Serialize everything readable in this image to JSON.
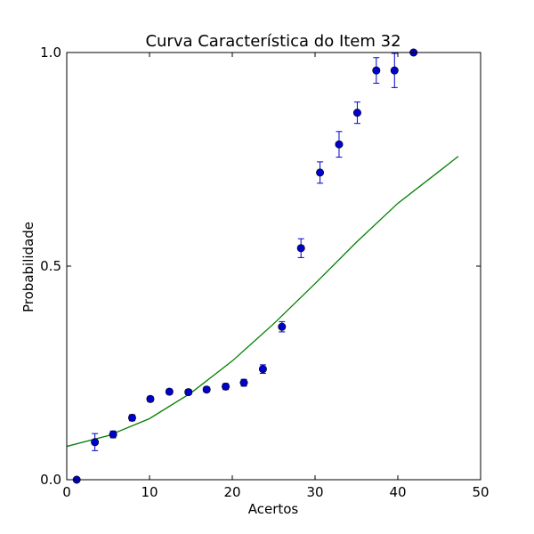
{
  "chart_data": {
    "type": "scatter",
    "title": "Curva Característica do Item 32",
    "xlabel": "Acertos",
    "ylabel": "Probabilidade",
    "xlim": [
      0,
      50
    ],
    "ylim": [
      0.0,
      1.0
    ],
    "xticks": [
      0,
      10,
      20,
      30,
      40,
      50
    ],
    "xtick_labels": [
      "0",
      "10",
      "20",
      "30",
      "40",
      "50"
    ],
    "yticks": [
      0.0,
      0.5,
      1.0
    ],
    "ytick_labels": [
      "0.0",
      "0.5",
      "1.0"
    ],
    "grid": false,
    "series": [
      {
        "kind": "points_with_errorbars",
        "color": "#0000cc",
        "x": [
          1.2,
          3.4,
          5.6,
          7.9,
          10.1,
          12.4,
          14.7,
          16.9,
          19.2,
          21.4,
          23.7,
          26.0,
          28.3,
          30.6,
          32.9,
          35.1,
          37.4,
          39.6,
          41.9
        ],
        "y": [
          0.0,
          0.088,
          0.106,
          0.145,
          0.189,
          0.206,
          0.205,
          0.211,
          0.218,
          0.227,
          0.259,
          0.358,
          0.542,
          0.719,
          0.785,
          0.859,
          0.958,
          0.958,
          1.0
        ],
        "yerr": [
          0.0,
          0.02,
          0.008,
          0.007,
          0.006,
          0.006,
          0.006,
          0.006,
          0.007,
          0.008,
          0.01,
          0.012,
          0.022,
          0.025,
          0.03,
          0.025,
          0.03,
          0.04,
          0.0
        ]
      },
      {
        "kind": "line",
        "color": "#008000",
        "x": [
          0,
          5,
          10,
          15,
          20,
          25,
          30,
          35,
          40,
          45,
          47.3
        ],
        "y": [
          0.078,
          0.103,
          0.143,
          0.203,
          0.278,
          0.365,
          0.459,
          0.556,
          0.647,
          0.722,
          0.757
        ]
      }
    ]
  }
}
